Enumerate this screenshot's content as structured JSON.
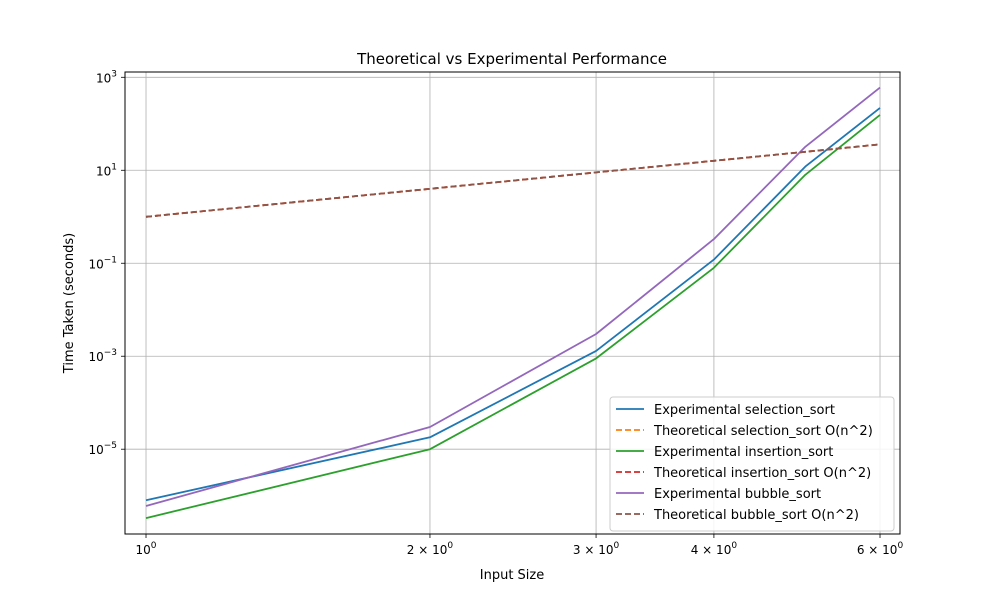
{
  "chart_data": {
    "type": "line",
    "title": "Theoretical vs Experimental Performance",
    "xlabel": "Input Size",
    "ylabel": "Time Taken (seconds)",
    "xscale": "log",
    "yscale": "log",
    "xlim": [
      0.95,
      6.3
    ],
    "ylim": [
      1.5e-07,
      1300
    ],
    "grid": true,
    "legend_position": "lower-right",
    "x": [
      1,
      2,
      3,
      4,
      5,
      6
    ],
    "x_ticks": [
      {
        "value": 1,
        "label": "10",
        "sup": "0",
        "prefix": ""
      },
      {
        "value": 2,
        "label": "10",
        "sup": "0",
        "prefix": "2 × "
      },
      {
        "value": 3,
        "label": "10",
        "sup": "0",
        "prefix": "3 × "
      },
      {
        "value": 4,
        "label": "10",
        "sup": "0",
        "prefix": "4 × "
      },
      {
        "value": 6,
        "label": "10",
        "sup": "0",
        "prefix": "6 × "
      }
    ],
    "y_ticks": [
      {
        "value": 1000,
        "label": "10",
        "sup": "3"
      },
      {
        "value": 10,
        "label": "10",
        "sup": "1"
      },
      {
        "value": 0.1,
        "label": "10",
        "sup": "−1"
      },
      {
        "value": 0.001,
        "label": "10",
        "sup": "−3"
      },
      {
        "value": 1e-05,
        "label": "10",
        "sup": "−5"
      }
    ],
    "series": [
      {
        "name": "Experimental selection_sort",
        "color": "#1f77b4",
        "dash": false,
        "values": [
          8e-07,
          1.8e-05,
          0.0013,
          0.12,
          12,
          220
        ]
      },
      {
        "name": "Theoretical selection_sort O(n^2)",
        "color": "#ff7f0e",
        "dash": true,
        "values": [
          1,
          4,
          9,
          16,
          25,
          36
        ]
      },
      {
        "name": "Experimental insertion_sort",
        "color": "#2ca02c",
        "dash": false,
        "values": [
          3.3e-07,
          1e-05,
          0.0009,
          0.08,
          8,
          155
        ]
      },
      {
        "name": "Theoretical insertion_sort O(n^2)",
        "color": "#d62728",
        "dash": true,
        "values": [
          1,
          4,
          9,
          16,
          25,
          36
        ]
      },
      {
        "name": "Experimental bubble_sort",
        "color": "#9467bd",
        "dash": false,
        "values": [
          6e-07,
          3e-05,
          0.003,
          0.33,
          32,
          600
        ]
      },
      {
        "name": "Theoretical bubble_sort O(n^2)",
        "color": "#8c564b",
        "dash": true,
        "values": [
          1,
          4,
          9,
          16,
          25,
          36
        ]
      }
    ]
  }
}
